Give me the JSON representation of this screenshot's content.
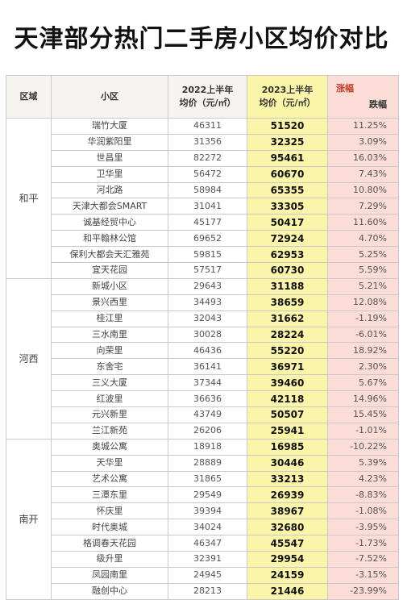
{
  "title": "天津部分热门二手房小区均价对比",
  "header": {
    "region": "区域",
    "community": "小区",
    "price_2022_line1": "2022上半年",
    "price_2022_line2": "均价（元/㎡）",
    "price_2023_line1": "2023上半年",
    "price_2023_line2": "均价（元/㎡）",
    "change_up": "涨幅",
    "change_down": "跌幅"
  },
  "regions": [
    {
      "name": "和平",
      "rows": [
        {
          "community": "瑞竹大厦",
          "p2022": "46311",
          "p2023": "51520",
          "change": "11.25%"
        },
        {
          "community": "华润紫阳里",
          "p2022": "31356",
          "p2023": "32325",
          "change": "3.09%"
        },
        {
          "community": "世昌里",
          "p2022": "82272",
          "p2023": "95461",
          "change": "16.03%"
        },
        {
          "community": "卫华里",
          "p2022": "56472",
          "p2023": "60670",
          "change": "7.43%"
        },
        {
          "community": "河北路",
          "p2022": "58984",
          "p2023": "65355",
          "change": "10.80%"
        },
        {
          "community": "天津大都会SMART",
          "p2022": "31041",
          "p2023": "33305",
          "change": "7.29%"
        },
        {
          "community": "诚基经贸中心",
          "p2022": "45177",
          "p2023": "50417",
          "change": "11.60%"
        },
        {
          "community": "和平翰林公馆",
          "p2022": "69652",
          "p2023": "72924",
          "change": "4.70%"
        },
        {
          "community": "保利大都会天汇雅苑",
          "p2022": "59815",
          "p2023": "62953",
          "change": "5.25%"
        },
        {
          "community": "宜天花园",
          "p2022": "57517",
          "p2023": "60730",
          "change": "5.59%"
        }
      ]
    },
    {
      "name": "河西",
      "rows": [
        {
          "community": "新城小区",
          "p2022": "29643",
          "p2023": "31188",
          "change": "5.21%"
        },
        {
          "community": "景兴西里",
          "p2022": "34493",
          "p2023": "38659",
          "change": "12.08%"
        },
        {
          "community": "桂江里",
          "p2022": "32043",
          "p2023": "31662",
          "change": "-1.19%"
        },
        {
          "community": "三水南里",
          "p2022": "30028",
          "p2023": "28224",
          "change": "-6.01%"
        },
        {
          "community": "向荣里",
          "p2022": "46436",
          "p2023": "55220",
          "change": "18.92%"
        },
        {
          "community": "东舍宅",
          "p2022": "36141",
          "p2023": "36971",
          "change": "2.30%"
        },
        {
          "community": "三义大厦",
          "p2022": "37344",
          "p2023": "39460",
          "change": "5.67%"
        },
        {
          "community": "红波里",
          "p2022": "36636",
          "p2023": "42118",
          "change": "14.96%"
        },
        {
          "community": "元兴新里",
          "p2022": "43749",
          "p2023": "50507",
          "change": "15.45%"
        },
        {
          "community": "兰江新苑",
          "p2022": "26206",
          "p2023": "25941",
          "change": "-1.01%"
        }
      ]
    },
    {
      "name": "南开",
      "rows": [
        {
          "community": "奥城公寓",
          "p2022": "18918",
          "p2023": "16985",
          "change": "-10.22%"
        },
        {
          "community": "天华里",
          "p2022": "28889",
          "p2023": "30446",
          "change": "5.39%"
        },
        {
          "community": "艺术公寓",
          "p2022": "31865",
          "p2023": "33213",
          "change": "4.23%"
        },
        {
          "community": "三潭东里",
          "p2022": "29549",
          "p2023": "26939",
          "change": "-8.83%"
        },
        {
          "community": "怀庆里",
          "p2022": "39394",
          "p2023": "38967",
          "change": "-1.08%"
        },
        {
          "community": "时代奥城",
          "p2022": "34024",
          "p2023": "32680",
          "change": "-3.95%"
        },
        {
          "community": "格调春天花园",
          "p2022": "46347",
          "p2023": "45547",
          "change": "-1.73%"
        },
        {
          "community": "级升里",
          "p2022": "32391",
          "p2023": "29954",
          "change": "-7.52%"
        },
        {
          "community": "凤园南里",
          "p2022": "24945",
          "p2023": "24159",
          "change": "-3.15%"
        },
        {
          "community": "融创中心",
          "p2022": "28213",
          "p2023": "21446",
          "change": "-23.99%"
        }
      ]
    }
  ],
  "colors": {
    "highlight_2023": "#fbf5a9",
    "change_column": "#fbdcd6",
    "up_label": "#c3402d"
  }
}
